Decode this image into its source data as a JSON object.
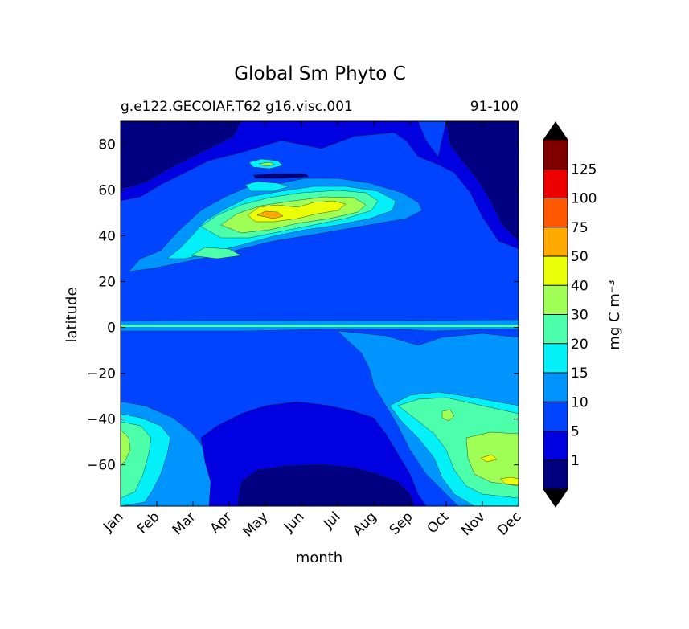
{
  "chart_data": {
    "type": "contour",
    "title": "Global Sm Phyto C",
    "subtitle_left": "g.e122.GECOIAF.T62 g16.visc.001",
    "subtitle_right": "91-100",
    "xlabel": "month",
    "ylabel": "latitude",
    "x_ticks": [
      "Jan",
      "Feb",
      "Mar",
      "Apr",
      "May",
      "Jun",
      "Jul",
      "Aug",
      "Sep",
      "Oct",
      "Nov",
      "Dec"
    ],
    "y_ticks": [
      80,
      60,
      40,
      20,
      0,
      -20,
      -40,
      -60
    ],
    "y_tick_labels": [
      "80",
      "60",
      "40",
      "20",
      "0",
      "−20",
      "−40",
      "−60"
    ],
    "ylim": [
      -78,
      90
    ],
    "xlim": [
      1,
      12
    ],
    "colorbar": {
      "label": "mg C m⁻³",
      "levels": [
        0,
        1,
        5,
        10,
        15,
        20,
        30,
        40,
        50,
        75,
        100,
        125,
        150
      ],
      "tick_labels": [
        "1",
        "5",
        "10",
        "15",
        "20",
        "30",
        "40",
        "50",
        "75",
        "100",
        "125"
      ],
      "colors": [
        "#000080",
        "#0000e1",
        "#0044ff",
        "#0094ff",
        "#04f0f8",
        "#4cffaa",
        "#a0ff55",
        "#eaff08",
        "#ffaa00",
        "#ff5800",
        "#ef0000",
        "#800000"
      ],
      "extend": "both"
    },
    "regions": [
      {
        "desc": "arctic low",
        "color": "#000080"
      },
      {
        "desc": "background",
        "color": "#0044ff"
      },
      {
        "desc": "north atlantic bloom",
        "color": "#0094ff"
      },
      {
        "desc": "southern ocean summer bloom",
        "color": "#0094ff"
      },
      {
        "desc": "equatorial band",
        "color": "#0094ff"
      },
      {
        "desc": "antarctic winter low",
        "color": "#000080"
      }
    ]
  }
}
